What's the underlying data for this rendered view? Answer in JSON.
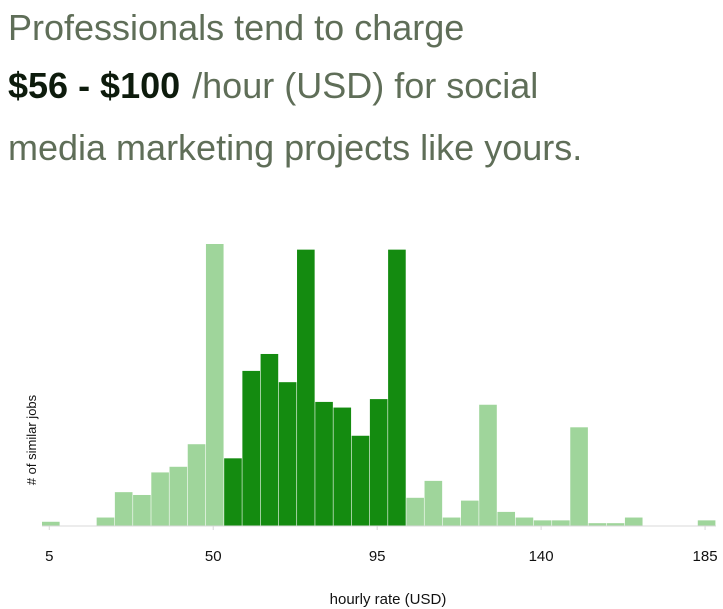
{
  "chart_data": {
    "type": "histogram",
    "headline": {
      "line1": "Professionals tend to charge",
      "range": "$56 - $100",
      "line2": "/hour (USD) for social",
      "line3": "media marketing projects like yours."
    },
    "y_label": "# of similar jobs",
    "x_label": "hourly rate (USD)",
    "bins": [
      3,
      8,
      13,
      18,
      23,
      28,
      33,
      38,
      43,
      48,
      53,
      58,
      63,
      68,
      73,
      78,
      83,
      88,
      93,
      98,
      103,
      108,
      113,
      118,
      123,
      128,
      133,
      138,
      143,
      148,
      153,
      158,
      163,
      168,
      173,
      178,
      183,
      188
    ],
    "values": [
      1.5,
      0,
      0,
      3,
      12,
      11,
      19,
      21,
      29,
      100,
      24,
      55,
      61,
      51,
      98,
      44,
      42,
      32,
      45,
      98,
      10,
      16,
      3,
      9,
      43,
      5,
      3,
      2,
      2,
      35,
      1,
      1,
      3,
      0,
      0,
      0,
      2
    ],
    "colors": [
      "#9fd59b",
      "#9fd59b",
      "#9fd59b",
      "#9fd59b",
      "#9fd59b",
      "#9fd59b",
      "#9fd59b",
      "#9fd59b",
      "#9fd59b",
      "#9fd59b",
      "#148b10",
      "#148b10",
      "#148b10",
      "#148b10",
      "#148b10",
      "#148b10",
      "#148b10",
      "#148b10",
      "#148b10",
      "#148b10",
      "#9fd59b",
      "#9fd59b",
      "#9fd59b",
      "#9fd59b",
      "#9fd59b",
      "#9fd59b",
      "#9fd59b",
      "#9fd59b",
      "#9fd59b",
      "#9fd59b",
      "#9fd59b",
      "#9fd59b",
      "#9fd59b",
      "#9fd59b",
      "#9fd59b",
      "#9fd59b",
      "#9fd59b"
    ],
    "xlim": [
      3,
      188
    ],
    "xticks": [
      5,
      50,
      95,
      140,
      185
    ],
    "ylim": [
      0,
      100
    ]
  }
}
